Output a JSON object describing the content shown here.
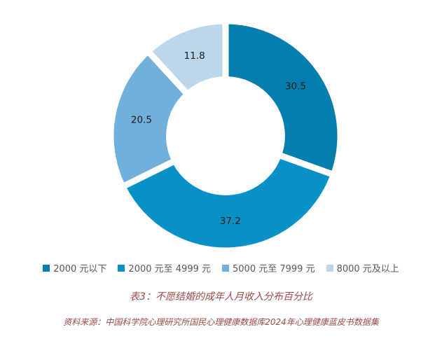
{
  "chart_data": {
    "type": "pie",
    "subtype": "donut",
    "title": "表3：不愿结婚的成年人月收入分布百分比",
    "categories": [
      "2000 元以下",
      "2000 元至 4999 元",
      "5000 元至 7999 元",
      "8000 元及以上"
    ],
    "values": [
      30.5,
      37.2,
      20.5,
      11.8
    ],
    "value_labels": [
      "30.5",
      "37.2",
      "20.5",
      "11.8"
    ],
    "unit": "percent",
    "colors": [
      "#047fad",
      "#0991c7",
      "#70b0da",
      "#bcd6eb"
    ],
    "start_angle_deg": 90,
    "direction": "clockwise",
    "inner_radius_ratio": 0.49,
    "legend_position": "bottom",
    "gap_color": "#ffffff"
  },
  "source_note": "资料来源：中国科学院心理研究所国民心理健康数据库2024年心理健康蓝皮书数据集",
  "styles": {
    "title_color": "#9c4a48",
    "legend_text_color": "#595959",
    "slice_label_color": "#1a1a1a",
    "background": "#ffffff"
  }
}
